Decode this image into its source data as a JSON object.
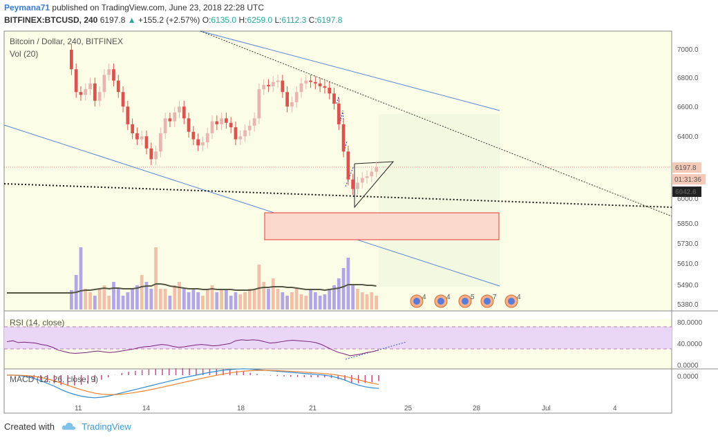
{
  "header": {
    "user": "Peymana71",
    "published_text": "published on TradingView.com, June 23, 2018 22:28 UTC",
    "symbol": "BITFINEX:BTCUSD, 240",
    "last_price": "6197.8",
    "arrow": "▲",
    "change": "+155.2 (+2.57%)",
    "o_label": "O:",
    "o_value": "6135.0",
    "h_label": "H:",
    "h_value": "6259.0",
    "l_label": "L:",
    "l_value": "6112.3",
    "c_label": "C:",
    "c_value": "6197.8"
  },
  "footer": {
    "created_with": "Created with",
    "brand": "TradingView",
    "logo_icon": "tradingview-cloud-icon"
  },
  "colors": {
    "up": "#26a69a",
    "down": "#ef5350",
    "candle_up": "#e9b5b0",
    "candle_down": "#d9534f",
    "vol_up": "#f0c0a8",
    "vol_down": "#b3a6e6",
    "rsi_line": "#7b1f7b",
    "macd_line": "#2a8ad6",
    "signal_line": "#f07f2a",
    "channel": "#5588dd",
    "zone_fill": "#fbd8cc",
    "zone_stroke": "#e53935"
  },
  "chart_data": [
    {
      "type": "candlestick",
      "title": "Bitcoin / Dollar, 240, BITFINEX",
      "sublabel": "Vol (20)",
      "x_ticks": [
        "11",
        "14",
        "18",
        "21",
        "25",
        "28",
        "Jul",
        "4"
      ],
      "y_ticks": [
        "7000.0",
        "6800.0",
        "6600.0",
        "6400.0",
        "6000.0",
        "5850.0",
        "5730.0",
        "5610.0",
        "5490.0",
        "5380.0"
      ],
      "y_scale": "log",
      "price_labels": {
        "last": "6197.8",
        "countdown": "01:31:36",
        "dotted_level": "6042.6"
      },
      "closes": [
        6860,
        6700,
        6680,
        6720,
        6760,
        6640,
        6700,
        6820,
        6860,
        6780,
        6700,
        6600,
        6480,
        6420,
        6380,
        6400,
        6320,
        6250,
        6300,
        6420,
        6520,
        6500,
        6560,
        6600,
        6520,
        6430,
        6380,
        6340,
        6360,
        6420,
        6500,
        6480,
        6520,
        6490,
        6460,
        6380,
        6400,
        6440,
        6470,
        6520,
        6720,
        6750,
        6740,
        6770,
        6780,
        6700,
        6600,
        6630,
        6700,
        6760,
        6780,
        6770,
        6760,
        6740,
        6730,
        6690,
        6620,
        6480,
        6300,
        6120,
        6060,
        6100,
        6130,
        6140,
        6170,
        6197.8
      ],
      "volumes": [
        0.28,
        0.5,
        0.9,
        0.3,
        0.25,
        0.2,
        0.3,
        0.35,
        0.2,
        0.4,
        0.3,
        0.2,
        0.25,
        0.3,
        0.35,
        0.5,
        0.4,
        0.3,
        0.9,
        0.3,
        0.3,
        0.2,
        0.35,
        0.4,
        0.3,
        0.25,
        0.3,
        0.25,
        0.2,
        0.3,
        0.35,
        0.25,
        0.3,
        0.28,
        0.2,
        0.25,
        0.22,
        0.25,
        0.3,
        0.28,
        0.65,
        0.4,
        0.3,
        0.45,
        0.3,
        0.25,
        0.2,
        0.25,
        0.3,
        0.22,
        0.2,
        0.28,
        0.25,
        0.2,
        0.22,
        0.3,
        0.35,
        0.45,
        0.6,
        0.75,
        0.35,
        0.3,
        0.25,
        0.22,
        0.25,
        0.2
      ],
      "vol_ma": [
        0.24,
        0.25,
        0.27,
        0.28,
        0.28,
        0.29,
        0.3,
        0.31,
        0.3,
        0.31,
        0.31,
        0.3,
        0.3,
        0.3,
        0.31,
        0.33,
        0.34,
        0.34,
        0.37,
        0.37,
        0.36,
        0.34,
        0.33,
        0.32,
        0.31,
        0.3,
        0.3,
        0.3,
        0.29,
        0.29,
        0.3,
        0.29,
        0.29,
        0.29,
        0.29,
        0.28,
        0.28,
        0.28,
        0.28,
        0.29,
        0.31,
        0.32,
        0.32,
        0.33,
        0.33,
        0.33,
        0.32,
        0.32,
        0.31,
        0.3,
        0.29,
        0.29,
        0.29,
        0.29,
        0.28,
        0.29,
        0.3,
        0.31,
        0.33,
        0.36,
        0.36,
        0.36,
        0.36,
        0.35,
        0.35,
        0.34
      ]
    },
    {
      "type": "line",
      "title": "RSI (14, close)",
      "y_ticks": [
        "80.0000",
        "40.0000",
        "0.0000"
      ],
      "ylim": [
        0,
        100
      ],
      "bands": [
        70,
        30
      ],
      "values": [
        58,
        60,
        56,
        57,
        56,
        55,
        52,
        50,
        46,
        40,
        37,
        34,
        33,
        34,
        35,
        37,
        38,
        36,
        35,
        36,
        38,
        40,
        42,
        45,
        47,
        48,
        50,
        52,
        51,
        48,
        46,
        47,
        49,
        51,
        52,
        51,
        49,
        50,
        52,
        54,
        60,
        62,
        61,
        62,
        61,
        58,
        55,
        56,
        58,
        60,
        61,
        60,
        59,
        58,
        56,
        52,
        46,
        40,
        35,
        32,
        28,
        30,
        32,
        35,
        37,
        40
      ]
    },
    {
      "type": "line",
      "title": "MACD (12, 26, close, 9)",
      "y_ticks": [
        "0.0000"
      ],
      "macd": [
        0,
        0,
        -2,
        -6,
        -12,
        -20,
        -30,
        -40,
        -52,
        -62,
        -70,
        -76,
        -80,
        -82,
        -80,
        -76,
        -70,
        -64,
        -58,
        -52,
        -46,
        -40,
        -34,
        -28,
        -22,
        -16,
        -10,
        -5,
        0,
        5,
        10,
        14,
        18,
        20,
        22,
        23,
        22,
        20,
        18,
        16,
        14,
        12,
        10,
        8,
        6,
        4,
        2,
        0,
        -4,
        -10,
        -18,
        -28,
        -36,
        -42,
        -46,
        -48
      ]
    }
  ]
}
